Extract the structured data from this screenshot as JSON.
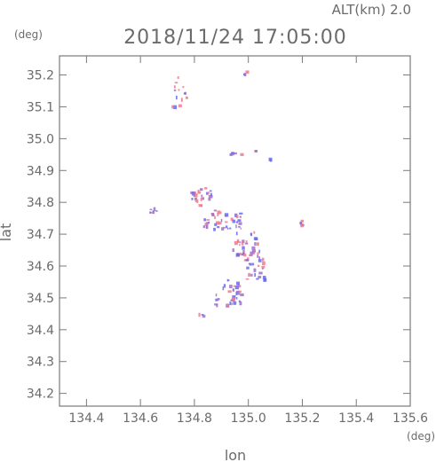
{
  "header": {
    "altitude_label": "ALT(km)  2.0",
    "timestamp": "2018/11/24 17:05:00",
    "y_unit": "(deg)",
    "x_unit": "(deg)"
  },
  "axes": {
    "xlabel": "lon",
    "ylabel": "lat",
    "xlim": [
      134.3,
      135.6
    ],
    "ylim": [
      34.16,
      35.26
    ],
    "xticks": [
      134.4,
      134.6,
      134.8,
      135.0,
      135.2,
      135.4,
      135.6
    ],
    "xtick_labels": [
      "134.4",
      "134.6",
      "134.8",
      "135.0",
      "135.2",
      "135.4",
      "135.6"
    ],
    "yticks": [
      34.2,
      34.3,
      34.4,
      34.5,
      34.6,
      34.7,
      34.8,
      34.9,
      35.0,
      35.1,
      35.2
    ],
    "ytick_labels": [
      "34.2",
      "34.3",
      "34.4",
      "34.5",
      "34.6",
      "34.7",
      "34.8",
      "34.9",
      "35.0",
      "35.1",
      "35.2"
    ]
  },
  "colors": {
    "frame": "#7a7a7a",
    "text": "#6b6b6b",
    "echo_blue": "#6a6af0",
    "echo_red": "#f07a8c",
    "echo_purple": "#a070c8"
  },
  "echo_clusters": [
    {
      "lon": 134.74,
      "lat": 35.15,
      "spread": [
        0.03,
        0.05
      ],
      "count": 14
    },
    {
      "lon": 134.98,
      "lat": 35.21,
      "spread": [
        0.01,
        0.005
      ],
      "count": 3
    },
    {
      "lon": 134.95,
      "lat": 34.955,
      "spread": [
        0.02,
        0.005
      ],
      "count": 6
    },
    {
      "lon": 135.08,
      "lat": 34.94,
      "spread": [
        0.005,
        0.005
      ],
      "count": 2
    },
    {
      "lon": 134.65,
      "lat": 34.78,
      "spread": [
        0.02,
        0.01
      ],
      "count": 6
    },
    {
      "lon": 134.82,
      "lat": 34.82,
      "spread": [
        0.04,
        0.03
      ],
      "count": 26
    },
    {
      "lon": 134.9,
      "lat": 34.75,
      "spread": [
        0.07,
        0.03
      ],
      "count": 42
    },
    {
      "lon": 134.99,
      "lat": 34.67,
      "spread": [
        0.05,
        0.04
      ],
      "count": 36
    },
    {
      "lon": 135.02,
      "lat": 34.6,
      "spread": [
        0.04,
        0.04
      ],
      "count": 28
    },
    {
      "lon": 134.92,
      "lat": 34.52,
      "spread": [
        0.05,
        0.04
      ],
      "count": 36
    },
    {
      "lon": 134.82,
      "lat": 34.45,
      "spread": [
        0.01,
        0.01
      ],
      "count": 3
    },
    {
      "lon": 135.2,
      "lat": 34.74,
      "spread": [
        0.01,
        0.01
      ],
      "count": 4
    },
    {
      "lon": 135.02,
      "lat": 34.96,
      "spread": [
        0.005,
        0.005
      ],
      "count": 2
    }
  ]
}
